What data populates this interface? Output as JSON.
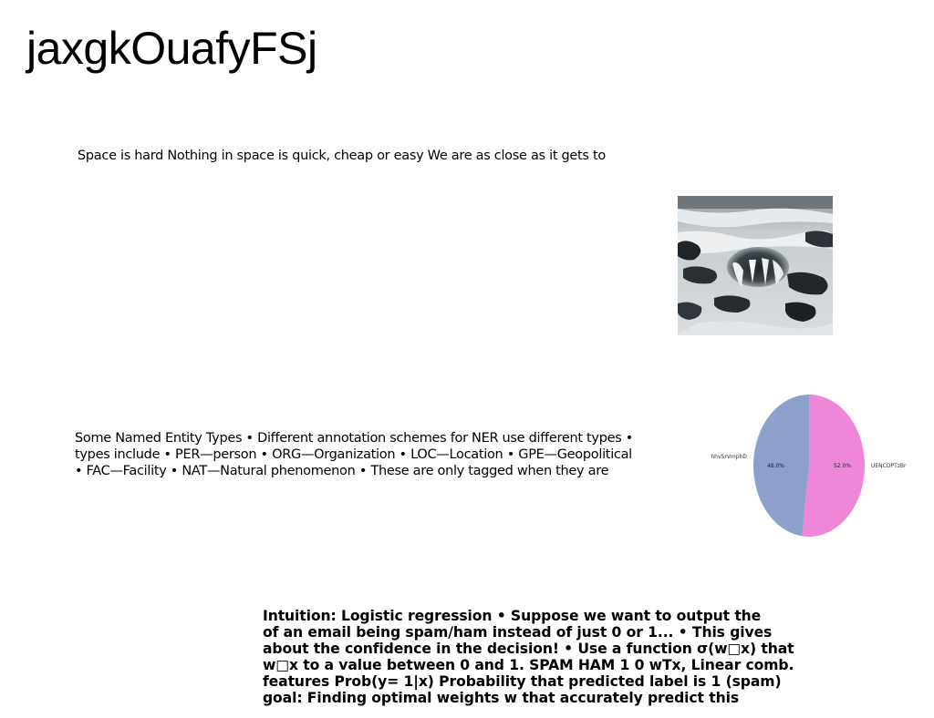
{
  "title": "jaxgkOuafyFSj",
  "paragraph1": "Space is hard Nothing in space is quick, cheap or easy We are as close as it gets to",
  "paragraph2": [
    "Some Named Entity Types • Different annotation schemes for NER use different types •",
    "types include • PER—person • ORG—Organization • LOC—Location • GPE—Geopolitical",
    "• FAC—Facility • NAT—Natural phenomenon • These are only tagged when they are"
  ],
  "paragraph3": [
    "Intuition: Logistic regression • Suppose we want to output the",
    "of an email being spam/ham instead of just 0 or 1... • This gives",
    "about the confidence in the decision! • Use a function σ(w□x) that",
    "w□x to a value between 0 and 1. SPAM HAM 1 0 wTx, Linear comb.",
    "features Prob(y= 1|x) Probability that predicted label is 1 (spam)",
    "goal: Finding optimal weights w that accurately predict this"
  ],
  "photo": {
    "icon": "waterfall-sinkhole-photo"
  },
  "chart_data": {
    "type": "pie",
    "slices": [
      {
        "label": "UENCDPTzBr",
        "value": 52.0,
        "pct_label": "52.0%",
        "color": "#ef87d8"
      },
      {
        "label": "hhvSrVmphD",
        "value": 48.0,
        "pct_label": "48.0%",
        "color": "#8da0cb"
      }
    ]
  }
}
